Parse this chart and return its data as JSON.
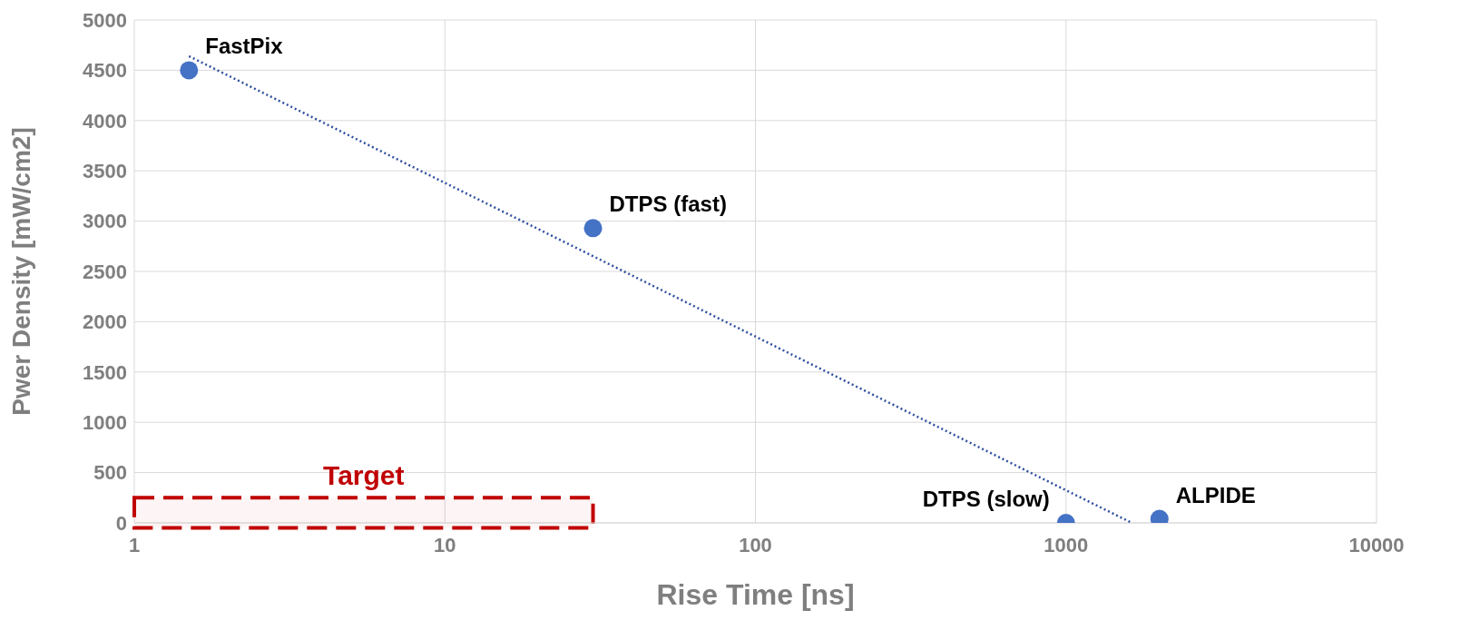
{
  "chart_data": {
    "type": "scatter",
    "xlabel": "Rise Time [ns]",
    "ylabel": "Pwer Density [mW/cm2]",
    "log": "x",
    "xlim": [
      1,
      10000
    ],
    "xticks": [
      1,
      10,
      100,
      1000,
      10000
    ],
    "ylim": [
      0,
      5000
    ],
    "yticks": [
      0,
      500,
      1000,
      1500,
      2000,
      2500,
      3000,
      3500,
      4000,
      4500,
      5000
    ],
    "grid": true,
    "legend": false,
    "marker": "circle",
    "series": [
      {
        "color": "#4472c4",
        "x": [
          1.5,
          30,
          1000,
          2000
        ],
        "values": [
          4500,
          2930,
          0,
          40
        ]
      },
      {
        "type": "line",
        "color": "#2f4f9f",
        "line_style": "dotted",
        "marker": "none",
        "x": [
          1.5,
          1630
        ],
        "values": [
          4640,
          0
        ]
      }
    ],
    "bands": [
      {
        "axis": "x",
        "from": 1,
        "to": 30,
        "label": "Target",
        "color": "#c00000"
      }
    ],
    "annotations": [
      {
        "text": "FastPix",
        "x": 1.5,
        "y": 4500
      },
      {
        "text": "DTPS (fast)",
        "x": 30,
        "y": 2930
      },
      {
        "text": "DTPS (slow)",
        "x": 1000,
        "y": 0
      },
      {
        "text": "ALPIDE",
        "x": 2000,
        "y": 40
      }
    ]
  }
}
